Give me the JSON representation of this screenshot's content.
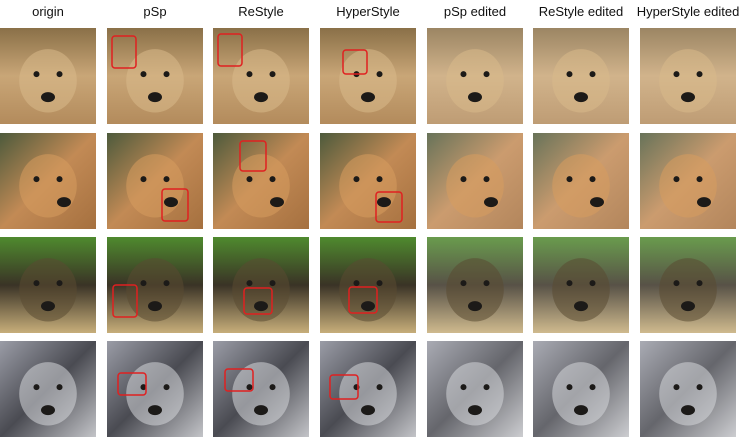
{
  "columns": [
    "origin",
    "pSp",
    "ReStyle",
    "HyperStyle",
    "pSp edited",
    "ReStyle edited",
    "HyperStyle edited"
  ]
}
